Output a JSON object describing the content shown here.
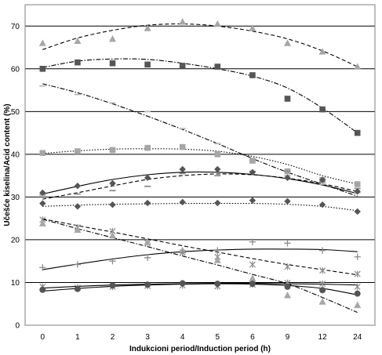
{
  "chart_data": {
    "type": "scatter",
    "xlabel": "Indukcioni period/Induction period (h)",
    "ylabel": "Učešće kiselina/Acid content (%)",
    "categories": [
      "0",
      "1",
      "2",
      "3",
      "4",
      "5",
      "6",
      "9",
      "12",
      "24"
    ],
    "ylim": [
      0,
      75
    ],
    "yticks": [
      0,
      10,
      20,
      30,
      40,
      50,
      60,
      70
    ],
    "grid": true,
    "legend": "none",
    "colors": {
      "dark": "#555555",
      "mid": "#8c8c8c",
      "light": "#a6a6a6",
      "lighter": "#b5b5b5",
      "black": "#000000"
    },
    "series": [
      {
        "marker": "triangle",
        "color": "#a6a6a6",
        "values": [
          66,
          66.5,
          67,
          69.5,
          71,
          70.5,
          69.5,
          66,
          64,
          60.5
        ]
      },
      {
        "marker": "square",
        "color": "#555555",
        "values": [
          60,
          61.5,
          61.3,
          61,
          60.7,
          60.5,
          58.5,
          53,
          50.5,
          45
        ]
      },
      {
        "marker": "dash",
        "color": "#b5b5b5",
        "values": [
          56,
          54,
          52,
          50,
          46,
          42.5,
          38.5,
          35,
          33,
          31
        ]
      },
      {
        "marker": "square",
        "color": "#a6a6a6",
        "values": [
          40.3,
          40.7,
          41,
          41.5,
          41.7,
          40,
          38.5,
          36,
          34,
          33
        ]
      },
      {
        "marker": "dash",
        "color": "#8c8c8c",
        "values": [
          30.5,
          30.7,
          31.5,
          32.5,
          35.5,
          35,
          36,
          36,
          33.5,
          32
        ]
      },
      {
        "marker": "diamond",
        "color": "#555555",
        "values": [
          31,
          32.6,
          33.2,
          34.5,
          36.5,
          36.5,
          35.8,
          34.5,
          34,
          31.3
        ]
      },
      {
        "marker": "diamond",
        "color": "#555555",
        "values": [
          28.5,
          27.8,
          28.2,
          28.6,
          28.8,
          28.6,
          29.2,
          29,
          28.2,
          26.6
        ]
      },
      {
        "marker": "asterisk",
        "color": "#8c8c8c",
        "values": [
          24.7,
          22.9,
          22,
          19.2,
          17,
          16,
          14.2,
          13.7,
          12.8,
          12
        ]
      },
      {
        "marker": "triangle",
        "color": "#a6a6a6",
        "values": [
          23.8,
          22.3,
          21,
          19.5,
          17.5,
          15.2,
          11,
          7,
          5.5,
          4.7
        ]
      },
      {
        "marker": "plus",
        "color": "#8c8c8c",
        "values": [
          13.5,
          14.2,
          15,
          15.8,
          17,
          17.5,
          19.5,
          19.2,
          17.5,
          16
        ]
      },
      {
        "marker": "asterisk",
        "color": "#8c8c8c",
        "values": [
          9,
          8.8,
          9,
          9.2,
          9.3,
          9.1,
          9.5,
          9.9,
          9.7,
          9
        ]
      },
      {
        "marker": "circle",
        "color": "#555555",
        "values": [
          8.3,
          8.5,
          9.3,
          9.5,
          9.8,
          9.7,
          9.7,
          9,
          8.2,
          7.4
        ]
      }
    ],
    "trendlines": [
      {
        "style": "dash",
        "color": "#000000",
        "values": [
          64.5,
          67.2,
          69,
          70.2,
          70.5,
          70,
          68.8,
          67,
          64.2,
          60.5
        ]
      },
      {
        "style": "dashdot",
        "color": "#000000",
        "values": [
          60.3,
          61.8,
          62.3,
          62.2,
          61.3,
          60,
          58.3,
          55.5,
          50.8,
          45
        ]
      },
      {
        "style": "dashdot",
        "color": "#000000",
        "values": [
          56.5,
          54.4,
          51.8,
          48.9,
          45.8,
          42.5,
          39,
          35.8,
          33,
          30.2
        ]
      },
      {
        "style": "dot",
        "color": "#000000",
        "values": [
          40.2,
          40.8,
          41.2,
          41.3,
          41.2,
          40.7,
          39.5,
          37.6,
          35,
          33
        ]
      },
      {
        "style": "solid",
        "color": "#000000",
        "values": [
          30.7,
          32.5,
          34.1,
          35.2,
          35.8,
          35.8,
          35.3,
          34.3,
          32.8,
          30.8
        ]
      },
      {
        "style": "dash",
        "color": "#000000",
        "values": [
          29.5,
          31,
          32.6,
          34.1,
          35,
          35.4,
          35.2,
          34.4,
          33.1,
          31.3
        ]
      },
      {
        "style": "dot",
        "color": "#000000",
        "values": [
          27.8,
          28.1,
          28.3,
          28.4,
          28.5,
          28.5,
          28.5,
          28.3,
          27.8,
          26.8
        ]
      },
      {
        "style": "dash",
        "color": "#000000",
        "values": [
          24.9,
          23.3,
          21.8,
          20.2,
          18.6,
          17.1,
          15.6,
          14.2,
          13,
          11.8
        ]
      },
      {
        "style": "dashdot",
        "color": "#000000",
        "values": [
          24.8,
          22.6,
          20.5,
          18.4,
          16.2,
          14.1,
          11.9,
          9.7,
          6.5,
          3
        ]
      },
      {
        "style": "solid",
        "color": "#000000",
        "values": [
          13,
          14.3,
          15.5,
          16.5,
          17.2,
          17.6,
          17.8,
          17.8,
          17.7,
          17.2
        ]
      },
      {
        "style": "solid",
        "color": "#000000",
        "values": [
          8.7,
          9.1,
          9.4,
          9.6,
          9.7,
          9.8,
          9.8,
          9.7,
          9.6,
          9.4
        ]
      },
      {
        "style": "solid",
        "color": "#000000",
        "values": [
          8.0,
          8.6,
          9.1,
          9.4,
          9.6,
          9.7,
          9.6,
          9.3,
          8.6,
          7.1
        ]
      }
    ]
  }
}
